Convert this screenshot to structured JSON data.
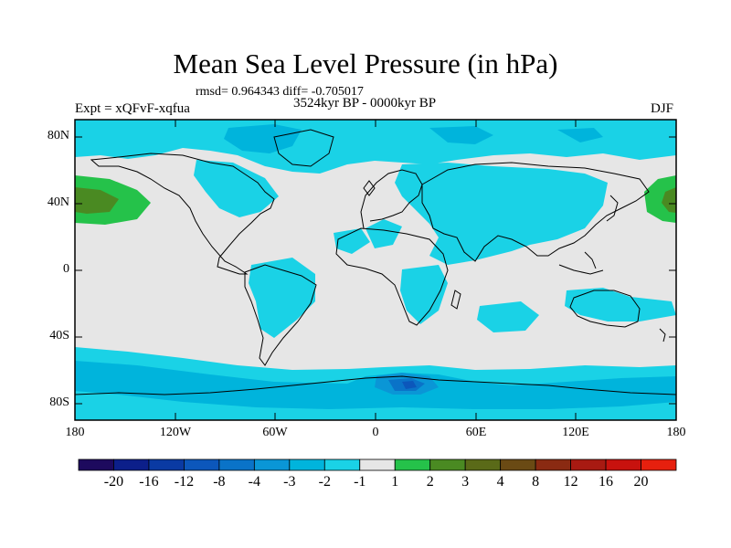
{
  "header": {
    "title": "Mean Sea Level Pressure (in hPa)",
    "stats": "rmsd= 0.964343 diff= -0.705017",
    "period": "3524kyr BP - 0000kyr BP",
    "experiment": "Expt = xQFvF-xqfua",
    "season": "DJF"
  },
  "map": {
    "lat_ticks": [
      "80N",
      "40N",
      "0",
      "40S",
      "80S"
    ],
    "lon_ticks": [
      "180",
      "120W",
      "60W",
      "0",
      "60E",
      "120E",
      "180"
    ],
    "colors": {
      "background_land_sea": "#e6e6e6",
      "neg_1_2": "#1ad2e6",
      "neg_2_3": "#00b4dc",
      "pos_1_2": "#25c24a",
      "pos_2_3": "#4a8a22",
      "coast": "#000000"
    }
  },
  "colorbar": {
    "labels": [
      "-20",
      "-16",
      "-12",
      "-8",
      "-4",
      "-3",
      "-2",
      "-1",
      "1",
      "2",
      "3",
      "4",
      "8",
      "12",
      "16",
      "20"
    ],
    "colors": [
      "#1d0a5e",
      "#0c1f8a",
      "#0a3aa3",
      "#0c57bb",
      "#0a73c8",
      "#0a96d6",
      "#00b4dc",
      "#1ad2e6",
      "#e6e6e6",
      "#25c24a",
      "#4a8a22",
      "#5a6a18",
      "#6a4a14",
      "#8a2a12",
      "#a81a12",
      "#c8120e",
      "#e6200e"
    ]
  }
}
